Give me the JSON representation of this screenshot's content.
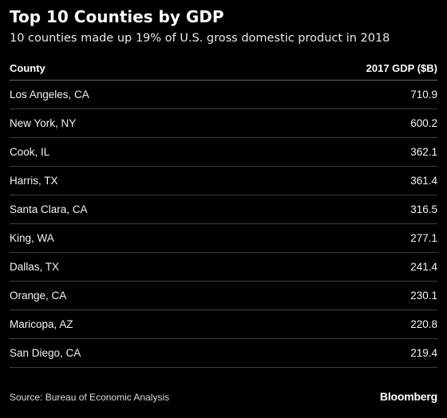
{
  "chart_data": {
    "type": "table",
    "title": "Top 10 Counties by GDP",
    "subtitle": "10 counties made up 19% of U.S. gross domestic product in 2018",
    "columns": [
      "County",
      "2017 GDP ($B)"
    ],
    "rows": [
      {
        "county": "Los Angeles, CA",
        "gdp": "710.9"
      },
      {
        "county": "New York, NY",
        "gdp": "600.2"
      },
      {
        "county": "Cook, IL",
        "gdp": "362.1"
      },
      {
        "county": "Harris, TX",
        "gdp": "361.4"
      },
      {
        "county": "Santa Clara, CA",
        "gdp": "316.5"
      },
      {
        "county": "King, WA",
        "gdp": "277.1"
      },
      {
        "county": "Dallas, TX",
        "gdp": "241.4"
      },
      {
        "county": "Orange, CA",
        "gdp": "230.1"
      },
      {
        "county": "Maricopa, AZ",
        "gdp": "220.8"
      },
      {
        "county": "San Diego, CA",
        "gdp": "219.4"
      }
    ],
    "source": "Source: Bureau of Economic Analysis",
    "brand": "Bloomberg"
  },
  "colors": {
    "background": "#000000",
    "text": "#ffffff",
    "rule": "#3e3e3e"
  }
}
